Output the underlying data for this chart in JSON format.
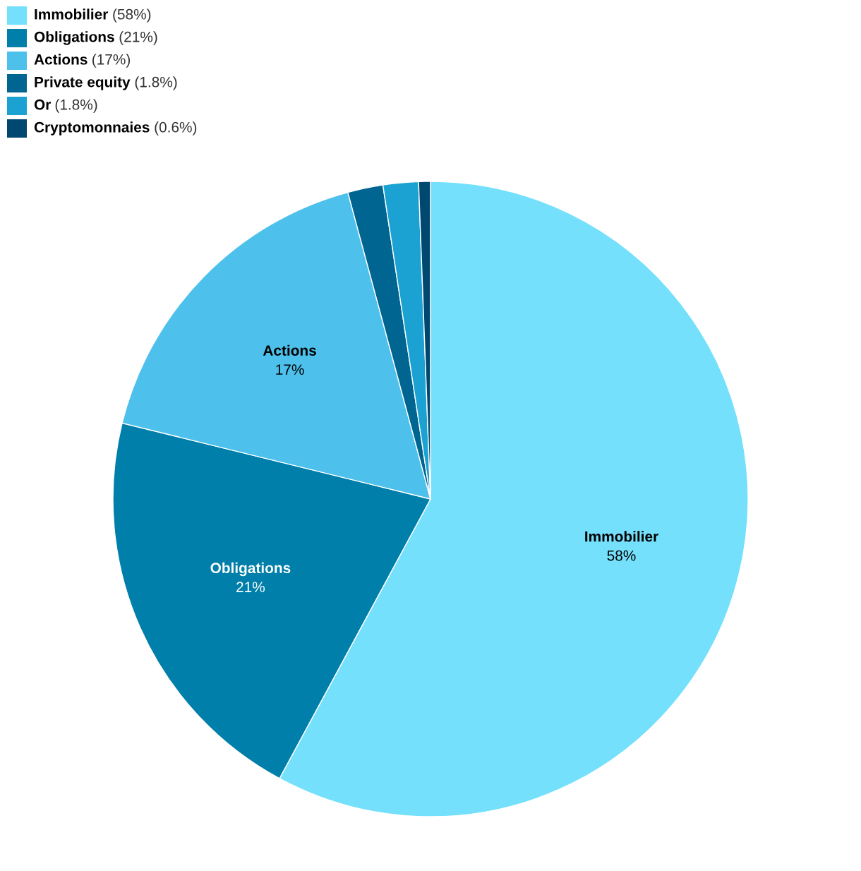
{
  "chart_data": {
    "type": "pie",
    "categories": [
      "Immobilier",
      "Obligations",
      "Actions",
      "Private equity",
      "Or",
      "Cryptomonnaies"
    ],
    "values": [
      58,
      21,
      17,
      1.8,
      1.8,
      0.6
    ],
    "value_labels": [
      "58%",
      "21%",
      "17%",
      null,
      null,
      null
    ],
    "colors": [
      "#74e0fc",
      "#007faa",
      "#4dc1ec",
      "#006590",
      "#1ba2d2",
      "#00486f"
    ],
    "annotations": [
      "(58%)",
      "(21%)",
      "(17%)",
      "(1.8%)",
      "(1.8%)",
      "(0.6%)"
    ],
    "legend": "top left"
  }
}
